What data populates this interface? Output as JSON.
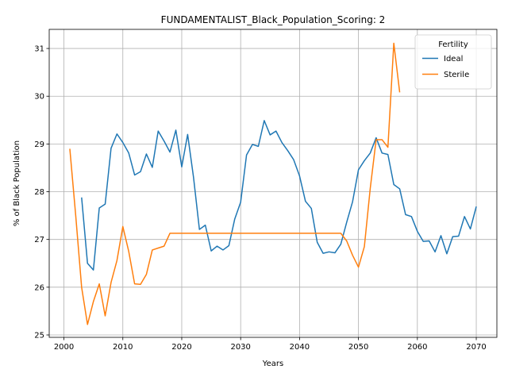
{
  "chart_data": {
    "type": "line",
    "title": "FUNDAMENTALIST_Black_Population_Scoring: 2",
    "xlabel": "Years",
    "ylabel": "% of Black Population",
    "xlim": [
      1997.5,
      2073.5
    ],
    "ylim": [
      24.95,
      31.4
    ],
    "xticks": [
      2000,
      2010,
      2020,
      2030,
      2040,
      2050,
      2060,
      2070
    ],
    "yticks": [
      25,
      26,
      27,
      28,
      29,
      30,
      31
    ],
    "grid": true,
    "legend": {
      "title": "Fertility",
      "placement": "top-right"
    },
    "series": [
      {
        "name": "Ideal",
        "color": "#1f77b4",
        "x": [
          2003,
          2004,
          2005,
          2006,
          2007,
          2008,
          2009,
          2010,
          2011,
          2012,
          2013,
          2014,
          2015,
          2016,
          2017,
          2018,
          2019,
          2020,
          2021,
          2022,
          2023,
          2024,
          2025,
          2026,
          2027,
          2028,
          2029,
          2030,
          2031,
          2032,
          2033,
          2034,
          2035,
          2036,
          2037,
          2038,
          2039,
          2040,
          2041,
          2042,
          2043,
          2044,
          2045,
          2046,
          2047,
          2048,
          2049,
          2050,
          2051,
          2052,
          2053,
          2054,
          2055,
          2056,
          2057,
          2058,
          2059,
          2060,
          2061,
          2062,
          2063,
          2064,
          2065,
          2066,
          2067,
          2068,
          2069,
          2070
        ],
        "values": [
          27.88,
          26.5,
          26.36,
          27.66,
          27.74,
          28.91,
          29.21,
          29.03,
          28.81,
          28.35,
          28.42,
          28.79,
          28.51,
          29.27,
          29.06,
          28.83,
          29.29,
          28.52,
          29.2,
          28.3,
          27.21,
          27.3,
          26.76,
          26.86,
          26.78,
          26.87,
          27.43,
          27.78,
          28.77,
          28.99,
          28.95,
          29.49,
          29.19,
          29.27,
          29.03,
          28.86,
          28.67,
          28.33,
          27.8,
          27.65,
          26.94,
          26.71,
          26.74,
          26.72,
          26.9,
          27.36,
          27.79,
          28.46,
          28.65,
          28.81,
          29.13,
          28.81,
          28.78,
          28.15,
          28.06,
          27.52,
          27.48,
          27.17,
          26.96,
          26.97,
          26.74,
          27.08,
          26.7,
          27.06,
          27.07,
          27.48,
          27.22,
          27.69
        ]
      },
      {
        "name": "Sterile",
        "color": "#ff7f0e",
        "x": [
          2001,
          2002,
          2003,
          2004,
          2005,
          2006,
          2007,
          2008,
          2009,
          2010,
          2011,
          2012,
          2013,
          2014,
          2015,
          2016,
          2017,
          2018,
          2019,
          2020,
          2021,
          2022,
          2023,
          2024,
          2025,
          2026,
          2027,
          2028,
          2029,
          2030,
          2031,
          2032,
          2033,
          2034,
          2035,
          2036,
          2037,
          2038,
          2039,
          2040,
          2041,
          2042,
          2043,
          2044,
          2045,
          2046,
          2047,
          2048,
          2049,
          2050,
          2051,
          2052,
          2053,
          2054,
          2055,
          2056,
          2057
        ],
        "values": [
          28.9,
          27.5,
          26.0,
          25.22,
          25.7,
          26.07,
          25.4,
          26.1,
          26.56,
          27.27,
          26.75,
          26.07,
          26.06,
          26.27,
          26.78,
          26.82,
          26.86,
          27.13,
          27.13,
          27.13,
          27.13,
          27.13,
          27.13,
          27.13,
          27.13,
          27.13,
          27.13,
          27.13,
          27.13,
          27.13,
          27.13,
          27.13,
          27.13,
          27.13,
          27.13,
          27.13,
          27.13,
          27.13,
          27.13,
          27.13,
          27.13,
          27.13,
          27.13,
          27.13,
          27.13,
          27.13,
          27.13,
          26.97,
          26.67,
          26.42,
          26.85,
          28.07,
          29.09,
          29.09,
          28.93,
          31.11,
          30.08
        ]
      }
    ]
  }
}
